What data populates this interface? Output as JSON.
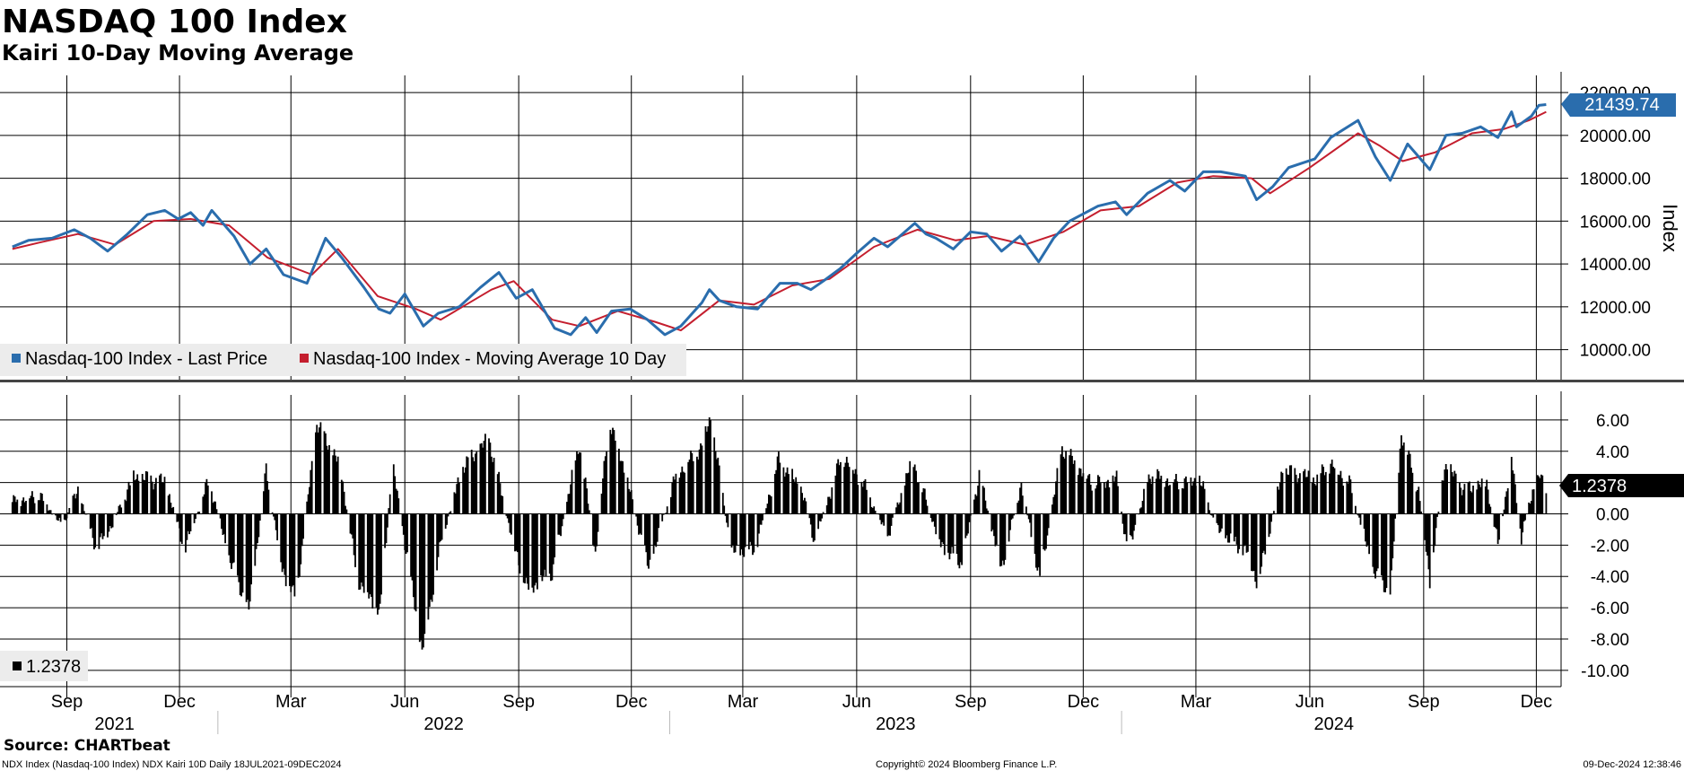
{
  "header": {
    "title": "NASDAQ 100 Index",
    "subtitle": "Kairi 10-Day Moving Average"
  },
  "colors": {
    "price": "#2a6dad",
    "ma": "#c41e2e",
    "bars": "#000000",
    "grid": "#000000",
    "legend_bg": "#ececec"
  },
  "chart_data": [
    {
      "type": "line",
      "panel": "upper",
      "ylabel": "Index",
      "ylim": [
        8600,
        22800
      ],
      "yticks": [
        10000,
        12000,
        14000,
        16000,
        18000,
        20000,
        22000
      ],
      "ytick_labels": [
        "10000.00",
        "12000.00",
        "14000.00",
        "16000.00",
        "18000.00",
        "20000.00",
        "22000.00"
      ],
      "grid": true,
      "legend_placement": "bottom-left",
      "x_range": [
        "2021-07-18",
        "2024-12-09"
      ],
      "series": [
        {
          "name": "Nasdaq-100 Index - Last Price",
          "last_value": "21439.74",
          "points": [
            [
              "2021-07-19",
              14800
            ],
            [
              "2021-08-01",
              15100
            ],
            [
              "2021-08-20",
              15200
            ],
            [
              "2021-09-07",
              15600
            ],
            [
              "2021-09-20",
              15200
            ],
            [
              "2021-10-04",
              14600
            ],
            [
              "2021-10-20",
              15400
            ],
            [
              "2021-11-05",
              16300
            ],
            [
              "2021-11-19",
              16500
            ],
            [
              "2021-11-30",
              16100
            ],
            [
              "2021-12-10",
              16400
            ],
            [
              "2021-12-20",
              15800
            ],
            [
              "2021-12-27",
              16500
            ],
            [
              "2022-01-05",
              15900
            ],
            [
              "2022-01-14",
              15300
            ],
            [
              "2022-01-27",
              14000
            ],
            [
              "2022-02-09",
              14700
            ],
            [
              "2022-02-23",
              13500
            ],
            [
              "2022-03-14",
              13100
            ],
            [
              "2022-03-29",
              15200
            ],
            [
              "2022-04-11",
              14300
            ],
            [
              "2022-04-29",
              12900
            ],
            [
              "2022-05-11",
              11900
            ],
            [
              "2022-05-20",
              11700
            ],
            [
              "2022-06-01",
              12600
            ],
            [
              "2022-06-16",
              11100
            ],
            [
              "2022-06-28",
              11700
            ],
            [
              "2022-07-15",
              12000
            ],
            [
              "2022-08-01",
              12900
            ],
            [
              "2022-08-16",
              13600
            ],
            [
              "2022-08-30",
              12400
            ],
            [
              "2022-09-12",
              12800
            ],
            [
              "2022-09-30",
              11000
            ],
            [
              "2022-10-13",
              10700
            ],
            [
              "2022-10-25",
              11500
            ],
            [
              "2022-11-03",
              10800
            ],
            [
              "2022-11-15",
              11800
            ],
            [
              "2022-11-30",
              11900
            ],
            [
              "2022-12-14",
              11400
            ],
            [
              "2022-12-28",
              10700
            ],
            [
              "2023-01-10",
              11100
            ],
            [
              "2023-01-27",
              12200
            ],
            [
              "2023-02-02",
              12800
            ],
            [
              "2023-02-10",
              12300
            ],
            [
              "2023-02-24",
              12000
            ],
            [
              "2023-03-13",
              11900
            ],
            [
              "2023-03-31",
              13100
            ],
            [
              "2023-04-14",
              13100
            ],
            [
              "2023-04-25",
              12800
            ],
            [
              "2023-05-05",
              13200
            ],
            [
              "2023-05-19",
              13800
            ],
            [
              "2023-06-01",
              14500
            ],
            [
              "2023-06-15",
              15200
            ],
            [
              "2023-06-26",
              14800
            ],
            [
              "2023-07-18",
              15900
            ],
            [
              "2023-07-27",
              15400
            ],
            [
              "2023-08-04",
              15200
            ],
            [
              "2023-08-18",
              14700
            ],
            [
              "2023-09-01",
              15500
            ],
            [
              "2023-09-14",
              15400
            ],
            [
              "2023-09-26",
              14600
            ],
            [
              "2023-10-11",
              15300
            ],
            [
              "2023-10-26",
              14100
            ],
            [
              "2023-11-07",
              15200
            ],
            [
              "2023-11-20",
              16000
            ],
            [
              "2023-12-13",
              16700
            ],
            [
              "2023-12-27",
              16900
            ],
            [
              "2024-01-05",
              16300
            ],
            [
              "2024-01-22",
              17300
            ],
            [
              "2024-02-09",
              17900
            ],
            [
              "2024-02-21",
              17400
            ],
            [
              "2024-03-07",
              18300
            ],
            [
              "2024-03-21",
              18300
            ],
            [
              "2024-04-10",
              18100
            ],
            [
              "2024-04-19",
              17000
            ],
            [
              "2024-05-02",
              17600
            ],
            [
              "2024-05-15",
              18500
            ],
            [
              "2024-06-05",
              18900
            ],
            [
              "2024-06-18",
              19900
            ],
            [
              "2024-07-10",
              20700
            ],
            [
              "2024-07-24",
              19000
            ],
            [
              "2024-08-05",
              17900
            ],
            [
              "2024-08-19",
              19600
            ],
            [
              "2024-09-06",
              18400
            ],
            [
              "2024-09-19",
              20000
            ],
            [
              "2024-10-02",
              20100
            ],
            [
              "2024-10-17",
              20400
            ],
            [
              "2024-10-31",
              19900
            ],
            [
              "2024-11-11",
              21100
            ],
            [
              "2024-11-15",
              20400
            ],
            [
              "2024-11-27",
              20900
            ],
            [
              "2024-12-03",
              21400
            ],
            [
              "2024-12-09",
              21439.74
            ]
          ]
        },
        {
          "name": "Nasdaq-100 Index - Moving Average 10 Day",
          "points": [
            [
              "2021-07-19",
              14700
            ],
            [
              "2021-08-10",
              15000
            ],
            [
              "2021-09-10",
              15400
            ],
            [
              "2021-10-10",
              14900
            ],
            [
              "2021-11-10",
              16000
            ],
            [
              "2021-12-10",
              16100
            ],
            [
              "2022-01-10",
              15800
            ],
            [
              "2022-02-10",
              14300
            ],
            [
              "2022-03-18",
              13500
            ],
            [
              "2022-04-08",
              14700
            ],
            [
              "2022-05-10",
              12500
            ],
            [
              "2022-06-10",
              11900
            ],
            [
              "2022-06-30",
              11400
            ],
            [
              "2022-08-10",
              12800
            ],
            [
              "2022-08-28",
              13200
            ],
            [
              "2022-09-28",
              11400
            ],
            [
              "2022-10-20",
              11100
            ],
            [
              "2022-11-20",
              11800
            ],
            [
              "2022-12-20",
              11300
            ],
            [
              "2023-01-10",
              10900
            ],
            [
              "2023-02-10",
              12300
            ],
            [
              "2023-03-10",
              12100
            ],
            [
              "2023-04-10",
              13000
            ],
            [
              "2023-05-10",
              13300
            ],
            [
              "2023-06-15",
              14800
            ],
            [
              "2023-07-20",
              15600
            ],
            [
              "2023-08-20",
              15100
            ],
            [
              "2023-09-15",
              15300
            ],
            [
              "2023-10-15",
              14900
            ],
            [
              "2023-11-15",
              15500
            ],
            [
              "2023-12-15",
              16500
            ],
            [
              "2024-01-15",
              16700
            ],
            [
              "2024-02-15",
              17800
            ],
            [
              "2024-03-15",
              18100
            ],
            [
              "2024-04-15",
              18000
            ],
            [
              "2024-04-30",
              17300
            ],
            [
              "2024-06-01",
              18500
            ],
            [
              "2024-07-10",
              20100
            ],
            [
              "2024-07-28",
              19500
            ],
            [
              "2024-08-15",
              18800
            ],
            [
              "2024-09-10",
              19200
            ],
            [
              "2024-10-10",
              20100
            ],
            [
              "2024-11-05",
              20300
            ],
            [
              "2024-11-25",
              20700
            ],
            [
              "2024-12-09",
              21100
            ]
          ]
        }
      ]
    },
    {
      "type": "bar",
      "panel": "lower",
      "ylim": [
        -11.5,
        7.6
      ],
      "yticks": [
        -10,
        -8,
        -6,
        -4,
        -2,
        0,
        2,
        4,
        6
      ],
      "ytick_labels": [
        "-10.00",
        "-8.00",
        "-6.00",
        "-4.00",
        "-2.00",
        "0.00",
        "2.00",
        "4.00",
        "6.00"
      ],
      "grid": true,
      "series": [
        {
          "name": "",
          "last_value": "1.2378",
          "keyframes": [
            [
              "2021-07-19",
              0.8
            ],
            [
              "2021-08-10",
              1.2
            ],
            [
              "2021-08-28",
              -0.8
            ],
            [
              "2021-09-10",
              1.5
            ],
            [
              "2021-09-25",
              -2.2
            ],
            [
              "2021-10-08",
              -0.6
            ],
            [
              "2021-10-25",
              2.4
            ],
            [
              "2021-11-20",
              2.0
            ],
            [
              "2021-12-05",
              -2.2
            ],
            [
              "2021-12-25",
              2.2
            ],
            [
              "2022-01-10",
              -2.8
            ],
            [
              "2022-01-26",
              -6.2
            ],
            [
              "2022-02-09",
              2.8
            ],
            [
              "2022-02-22",
              -3.5
            ],
            [
              "2022-03-05",
              -5.5
            ],
            [
              "2022-03-22",
              5.8
            ],
            [
              "2022-04-10",
              3.0
            ],
            [
              "2022-04-24",
              -4.2
            ],
            [
              "2022-05-12",
              -6.3
            ],
            [
              "2022-05-22",
              3.2
            ],
            [
              "2022-06-15",
              -8.8
            ],
            [
              "2022-07-01",
              -1.5
            ],
            [
              "2022-07-18",
              3.0
            ],
            [
              "2022-08-08",
              4.8
            ],
            [
              "2022-08-28",
              -2.0
            ],
            [
              "2022-09-08",
              -4.8
            ],
            [
              "2022-09-28",
              -3.8
            ],
            [
              "2022-10-20",
              4.5
            ],
            [
              "2022-11-02",
              -2.5
            ],
            [
              "2022-11-13",
              6.0
            ],
            [
              "2022-11-25",
              3.0
            ],
            [
              "2022-12-15",
              -3.5
            ],
            [
              "2023-01-06",
              2.5
            ],
            [
              "2023-01-26",
              4.2
            ],
            [
              "2023-02-03",
              6.2
            ],
            [
              "2023-02-20",
              -2.5
            ],
            [
              "2023-03-11",
              -2.2
            ],
            [
              "2023-03-30",
              3.5
            ],
            [
              "2023-04-18",
              1.5
            ],
            [
              "2023-04-28",
              -1.8
            ],
            [
              "2023-05-20",
              3.8
            ],
            [
              "2023-06-06",
              2.0
            ],
            [
              "2023-06-26",
              -1.5
            ],
            [
              "2023-07-16",
              3.5
            ],
            [
              "2023-08-08",
              -2.0
            ],
            [
              "2023-08-25",
              -3.2
            ],
            [
              "2023-09-08",
              2.5
            ],
            [
              "2023-09-26",
              -3.5
            ],
            [
              "2023-10-12",
              2.0
            ],
            [
              "2023-10-27",
              -4.2
            ],
            [
              "2023-11-14",
              4.2
            ],
            [
              "2023-12-08",
              2.0
            ],
            [
              "2023-12-28",
              2.2
            ],
            [
              "2024-01-06",
              -2.5
            ],
            [
              "2024-01-24",
              2.5
            ],
            [
              "2024-02-16",
              2.0
            ],
            [
              "2024-03-04",
              2.2
            ],
            [
              "2024-03-18",
              -1.0
            ],
            [
              "2024-04-12",
              -2.5
            ],
            [
              "2024-04-20",
              -4.5
            ],
            [
              "2024-05-10",
              2.8
            ],
            [
              "2024-06-05",
              2.2
            ],
            [
              "2024-06-18",
              3.2
            ],
            [
              "2024-07-03",
              2.0
            ],
            [
              "2024-07-22",
              -3.5
            ],
            [
              "2024-08-05",
              -5.2
            ],
            [
              "2024-08-14",
              5.2
            ],
            [
              "2024-08-28",
              1.5
            ],
            [
              "2024-09-06",
              -4.2
            ],
            [
              "2024-09-18",
              3.2
            ],
            [
              "2024-10-04",
              1.5
            ],
            [
              "2024-10-22",
              2.0
            ],
            [
              "2024-10-31",
              -2.0
            ],
            [
              "2024-11-11",
              3.5
            ],
            [
              "2024-11-19",
              -1.5
            ],
            [
              "2024-11-28",
              1.5
            ],
            [
              "2024-12-04",
              2.4
            ],
            [
              "2024-12-09",
              1.2378
            ]
          ]
        }
      ]
    }
  ],
  "x_axis": {
    "month_ticks": [
      {
        "label": "Sep",
        "date": "2021-09-01"
      },
      {
        "label": "Dec",
        "date": "2021-12-01"
      },
      {
        "label": "Mar",
        "date": "2022-03-01"
      },
      {
        "label": "Jun",
        "date": "2022-06-01"
      },
      {
        "label": "Sep",
        "date": "2022-09-01"
      },
      {
        "label": "Dec",
        "date": "2022-12-01"
      },
      {
        "label": "Mar",
        "date": "2023-03-01"
      },
      {
        "label": "Jun",
        "date": "2023-06-01"
      },
      {
        "label": "Sep",
        "date": "2023-09-01"
      },
      {
        "label": "Dec",
        "date": "2023-12-01"
      },
      {
        "label": "Mar",
        "date": "2024-03-01"
      },
      {
        "label": "Jun",
        "date": "2024-06-01"
      },
      {
        "label": "Sep",
        "date": "2024-09-01"
      },
      {
        "label": "Dec",
        "date": "2024-12-01"
      }
    ],
    "years": [
      {
        "label": "2021",
        "start": "2021-07-18",
        "end": "2022-01-01"
      },
      {
        "label": "2022",
        "start": "2022-01-01",
        "end": "2023-01-01"
      },
      {
        "label": "2023",
        "start": "2023-01-01",
        "end": "2024-01-01"
      },
      {
        "label": "2024",
        "start": "2024-01-01",
        "end": "2024-12-09"
      }
    ]
  },
  "footer": {
    "source": "Source: CHARTbeat",
    "ticker_info": "NDX Index (Nasdaq-100 Index) NDX Kairi 10D  Daily 18JUL2021-09DEC2024",
    "copyright": "Copyright© 2024 Bloomberg Finance L.P.",
    "timestamp": "09-Dec-2024 12:38:46"
  }
}
